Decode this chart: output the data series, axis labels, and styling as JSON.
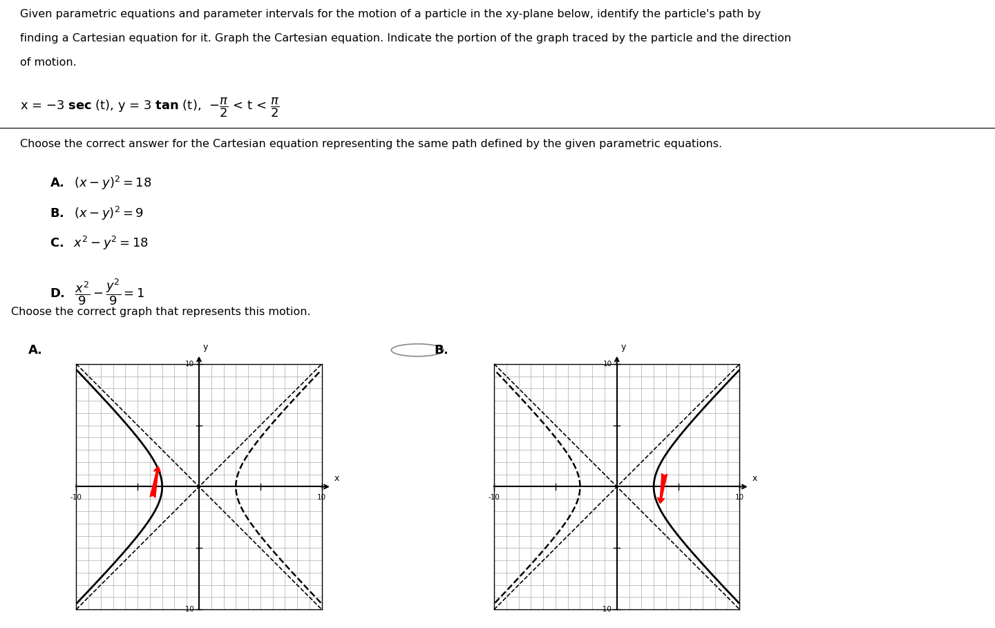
{
  "bg_color": "#ffffff",
  "grid_color": "#aaaaaa",
  "text_color": "#000000",
  "arrow_color": "#cc0000",
  "xlim": [
    -11,
    11
  ],
  "ylim": [
    -11,
    11
  ],
  "hyperbola_a": 3,
  "t_range": 1.47,
  "t_points": 500
}
